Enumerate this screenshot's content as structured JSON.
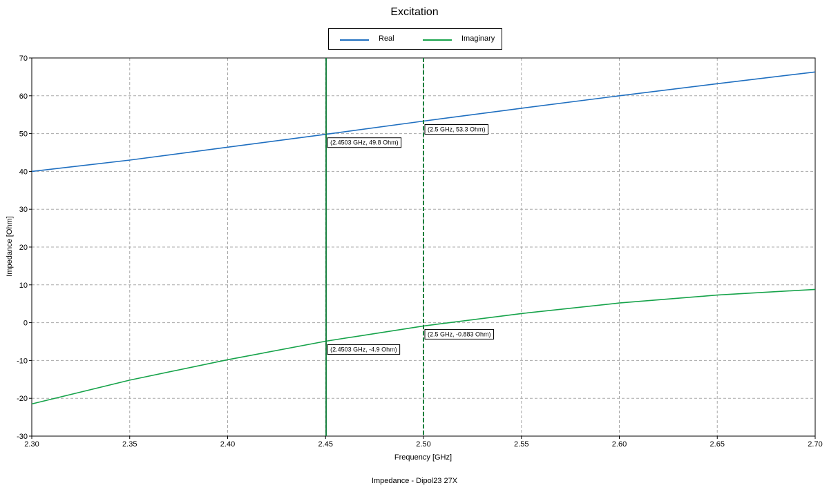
{
  "chart_data": {
    "type": "line",
    "title": "Excitation",
    "xlabel": "Frequency [GHz]",
    "ylabel": "Impedance [Ohm]",
    "footer": "Impedance - Dipol23 27X",
    "xlim": [
      2.3,
      2.7
    ],
    "ylim": [
      -30,
      70
    ],
    "x_ticks": [
      "2.30",
      "2.35",
      "2.40",
      "2.45",
      "2.50",
      "2.55",
      "2.60",
      "2.65",
      "2.70"
    ],
    "y_ticks": [
      "-30",
      "-20",
      "-10",
      "0",
      "10",
      "20",
      "30",
      "40",
      "50",
      "60",
      "70"
    ],
    "grid": true,
    "legend_position": "top-center",
    "series": [
      {
        "name": "Real",
        "color": "#1f6fc0",
        "x": [
          2.3,
          2.35,
          2.4,
          2.45,
          2.5,
          2.55,
          2.6,
          2.65,
          2.7
        ],
        "y": [
          40.0,
          43.0,
          46.4,
          49.8,
          53.3,
          56.7,
          60.0,
          63.2,
          66.3
        ]
      },
      {
        "name": "Imaginary",
        "color": "#16a34a",
        "x": [
          2.3,
          2.35,
          2.4,
          2.45,
          2.5,
          2.55,
          2.6,
          2.65,
          2.7
        ],
        "y": [
          -21.5,
          -15.2,
          -9.8,
          -4.9,
          -0.883,
          2.4,
          5.2,
          7.3,
          8.8
        ]
      }
    ],
    "markers": [
      {
        "x": 2.4503,
        "style": "solid",
        "color": "#15803d",
        "labels": [
          {
            "y": 49.8,
            "text": "(2.4503 GHz, 49.8 Ohm)"
          },
          {
            "y": -4.9,
            "text": "(2.4503 GHz, -4.9 Ohm)"
          }
        ]
      },
      {
        "x": 2.5,
        "style": "dashed",
        "color": "#15803d",
        "labels": [
          {
            "y": 53.3,
            "text": "(2.5 GHz, 53.3 Ohm)"
          },
          {
            "y": -0.883,
            "text": "(2.5 GHz, -0.883 Ohm)"
          }
        ]
      }
    ]
  }
}
